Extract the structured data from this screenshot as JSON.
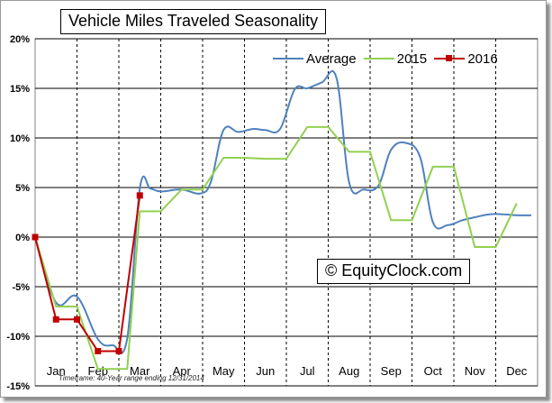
{
  "chart_data": {
    "type": "line",
    "title": "Vehicle Miles Traveled Seasonality",
    "watermark": "© EquityClock.com",
    "footnote": "Timeframe: 40-Year range ending 12/31/2014",
    "xlabel": "",
    "ylabel": "",
    "ylim": [
      -15,
      20
    ],
    "y_ticks": [
      "20%",
      "15%",
      "10%",
      "5%",
      "0%",
      "-5%",
      "-10%",
      "-15%"
    ],
    "y_tick_values": [
      20,
      15,
      10,
      5,
      0,
      -5,
      -10,
      -15
    ],
    "categories": [
      "Jan",
      "Feb",
      "Mar",
      "Apr",
      "May",
      "Jun",
      "Jul",
      "Aug",
      "Sep",
      "Oct",
      "Nov",
      "Dec"
    ],
    "xlim": [
      0,
      12
    ],
    "grid": true,
    "legend_position": "top-right",
    "series": [
      {
        "name": "Average",
        "color": "#4f81bd",
        "x": [
          0,
          0.5,
          1.0,
          1.5,
          1.85,
          2.2,
          2.5,
          2.75,
          3.0,
          3.5,
          3.95,
          4.2,
          4.5,
          4.85,
          5.2,
          5.5,
          5.85,
          6.2,
          6.5,
          6.85,
          7.2,
          7.5,
          7.85,
          8.2,
          8.5,
          8.85,
          9.2,
          9.5,
          9.85,
          10.2,
          10.5,
          10.85,
          11.2,
          11.5,
          11.85
        ],
        "y": [
          0,
          -6.6,
          -6.0,
          -10.3,
          -10.9,
          -10.2,
          4.9,
          4.9,
          4.6,
          4.8,
          4.4,
          5.6,
          10.8,
          10.6,
          10.9,
          10.8,
          10.9,
          14.9,
          15.0,
          15.6,
          16.0,
          5.5,
          4.8,
          5.2,
          8.8,
          9.5,
          8.0,
          1.5,
          1.2,
          1.7,
          2.0,
          2.3,
          2.3,
          2.2,
          2.2
        ]
      },
      {
        "name": "2015",
        "color": "#92d050",
        "x": [
          0,
          0.5,
          1.0,
          1.5,
          2.2,
          2.5,
          3.0,
          3.5,
          4.0,
          4.5,
          5.0,
          5.5,
          6.0,
          6.5,
          7.0,
          7.5,
          8.0,
          8.5,
          9.0,
          9.5,
          10.0,
          10.5,
          11.0,
          11.5
        ],
        "y": [
          0,
          -7.0,
          -7.0,
          -13.3,
          -13.3,
          2.6,
          2.6,
          4.8,
          4.8,
          8.0,
          8.0,
          7.9,
          7.9,
          11.1,
          11.1,
          8.6,
          8.6,
          1.7,
          1.7,
          7.1,
          7.1,
          -1.0,
          -1.0,
          3.4
        ]
      },
      {
        "name": "2016",
        "color": "#c00000",
        "x": [
          0,
          0.5,
          1.0,
          1.5,
          2.0,
          2.5
        ],
        "y": [
          0,
          -8.3,
          -8.3,
          -11.5,
          -11.5,
          4.2
        ]
      }
    ]
  }
}
